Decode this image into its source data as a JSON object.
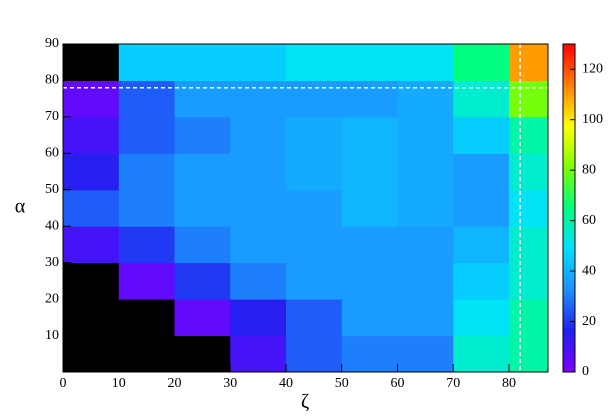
{
  "chart_data": {
    "type": "heatmap",
    "xlabel": "ζ",
    "ylabel": "α",
    "xbins": [
      0,
      10,
      20,
      30,
      40,
      50,
      60,
      70,
      80,
      87
    ],
    "ybins": [
      0,
      10,
      20,
      30,
      40,
      50,
      60,
      70,
      80,
      90
    ],
    "z": [
      [
        0,
        0,
        0,
        10,
        25,
        30,
        30,
        55,
        60
      ],
      [
        0,
        0,
        5,
        15,
        25,
        35,
        35,
        50,
        60
      ],
      [
        0,
        5,
        20,
        30,
        35,
        35,
        35,
        45,
        55
      ],
      [
        10,
        20,
        30,
        35,
        35,
        35,
        35,
        40,
        55
      ],
      [
        25,
        30,
        35,
        35,
        35,
        40,
        38,
        35,
        50
      ],
      [
        15,
        30,
        35,
        35,
        38,
        40,
        38,
        35,
        55
      ],
      [
        10,
        25,
        30,
        35,
        38,
        40,
        38,
        45,
        60
      ],
      [
        5,
        25,
        35,
        35,
        35,
        35,
        38,
        55,
        80
      ],
      [
        0,
        45,
        45,
        45,
        50,
        50,
        50,
        65,
        110
      ]
    ],
    "xlim": [
      0,
      87
    ],
    "ylim": [
      0,
      90
    ],
    "zlim": [
      0,
      130
    ],
    "xticks": [
      0,
      10,
      20,
      30,
      40,
      50,
      60,
      70,
      80
    ],
    "yticks": [
      10,
      20,
      30,
      40,
      50,
      60,
      70,
      80,
      90
    ],
    "zticks": [
      0,
      20,
      40,
      60,
      80,
      100,
      120
    ],
    "ref_lines": {
      "x": 82,
      "y": 78
    },
    "colormap": [
      "#7f00ff",
      "#2020f0",
      "#1e90ff",
      "#00e0ff",
      "#00ff80",
      "#80ff00",
      "#ffff00",
      "#ff8000",
      "#ff0000"
    ],
    "below_color": "#000000"
  }
}
